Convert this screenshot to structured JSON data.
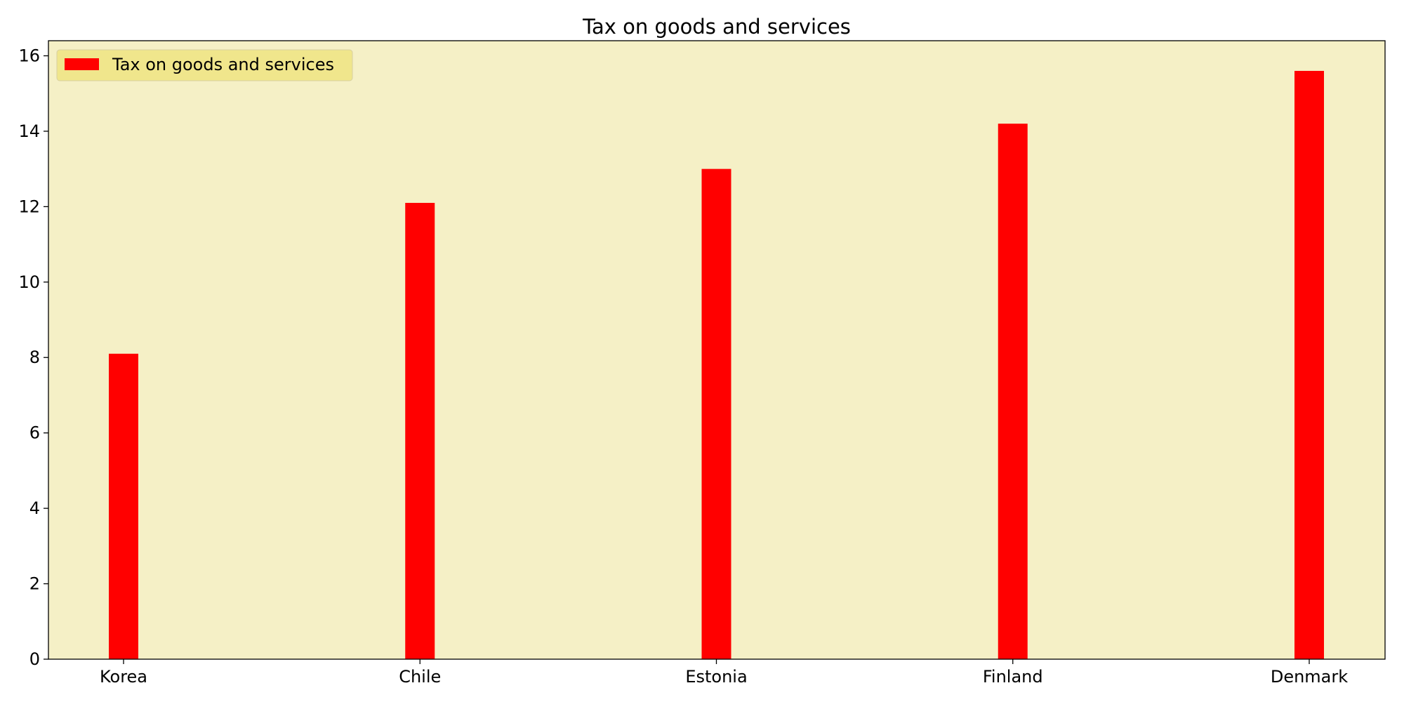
{
  "chart_data": {
    "type": "bar",
    "title": "Tax on goods and services",
    "xlabel": "",
    "ylabel": "",
    "categories": [
      "Korea",
      "Chile",
      "Estonia",
      "Finland",
      "Denmark"
    ],
    "series": [
      {
        "name": "Tax on goods and services",
        "values": [
          8.1,
          12.1,
          13.0,
          14.2,
          15.6
        ]
      }
    ],
    "ylim": [
      0,
      16.4
    ],
    "yticks": [
      "0",
      "2",
      "4",
      "6",
      "8",
      "10",
      "12",
      "14",
      "16"
    ],
    "grid": false,
    "legend_position": "top-left",
    "colors": {
      "bar": "#ff0000",
      "plot_background": "#f5f0c6",
      "legend_background": "#f0e68c",
      "axis": "#000000"
    }
  }
}
